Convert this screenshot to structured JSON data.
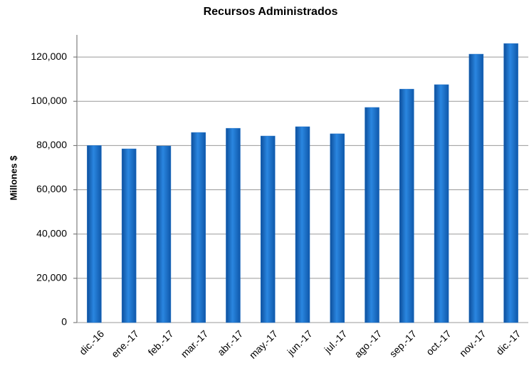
{
  "chart_data": {
    "type": "bar",
    "title": "Recursos Administrados",
    "y_label": "Millones $",
    "categories": [
      "dic.-16",
      "ene.-17",
      "feb.-17",
      "mar.-17",
      "abr.-17",
      "may.-17",
      "jun.-17",
      "jul.-17",
      "ago.-17",
      "sep.-17",
      "oct.-17",
      "nov.-17",
      "dic.-17"
    ],
    "values": [
      80000,
      78500,
      79800,
      85900,
      87800,
      84300,
      88500,
      85300,
      97200,
      105500,
      107500,
      121300,
      126100
    ],
    "color": "#1f6fc4",
    "ylim": [
      0,
      130000
    ],
    "yticks": [
      0,
      {
        "value": 20000,
        "label": "20,000"
      },
      {
        "value": 40000,
        "label": "40,000"
      },
      {
        "value": 60000,
        "label": "60,000"
      },
      {
        "value": 80000,
        "label": "80,000"
      },
      {
        "value": 100000,
        "label": "100,000"
      },
      {
        "value": 120000,
        "label": "120,000"
      }
    ],
    "grid": true
  }
}
